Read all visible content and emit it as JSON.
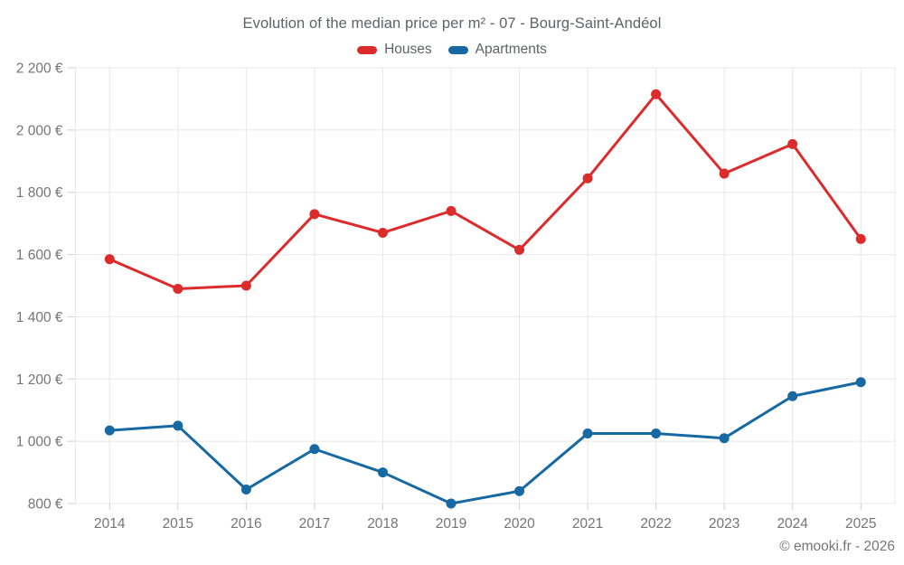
{
  "page": {
    "attribution": "© emooki.fr - 2026"
  },
  "chart_data": {
    "type": "line",
    "title": "Evolution of the median price per m² - 07 - Bourg-Saint-Andéol",
    "x": [
      2014,
      2015,
      2016,
      2017,
      2018,
      2019,
      2020,
      2021,
      2022,
      2023,
      2024,
      2025
    ],
    "xtick_labels": [
      "2014",
      "2015",
      "2016",
      "2017",
      "2018",
      "2019",
      "2020",
      "2021",
      "2022",
      "2023",
      "2024",
      "2025"
    ],
    "series": [
      {
        "name": "Houses",
        "color": "#dc2b2b",
        "values": [
          1585,
          1490,
          1500,
          1730,
          1670,
          1740,
          1615,
          1845,
          2115,
          1860,
          1955,
          1650
        ]
      },
      {
        "name": "Apartments",
        "color": "#1669a2",
        "values": [
          1035,
          1050,
          845,
          975,
          900,
          800,
          840,
          1025,
          1025,
          1010,
          1145,
          1190
        ]
      }
    ],
    "xlabel": "",
    "ylabel": "",
    "ylim": [
      800,
      2200
    ],
    "ytick_values": [
      800,
      1000,
      1200,
      1400,
      1600,
      1800,
      2000,
      2200
    ],
    "ytick_labels": [
      "800 €",
      "1 000 €",
      "1 200 €",
      "1 400 €",
      "1 600 €",
      "1 800 €",
      "2 000 €",
      "2 200 €"
    ],
    "grid": true,
    "legend_position": "top",
    "grid_color": "#e8e8e8",
    "tick_color": "#cfcfcf",
    "tick_label_color": "#757575",
    "title_color": "#5f6368"
  }
}
